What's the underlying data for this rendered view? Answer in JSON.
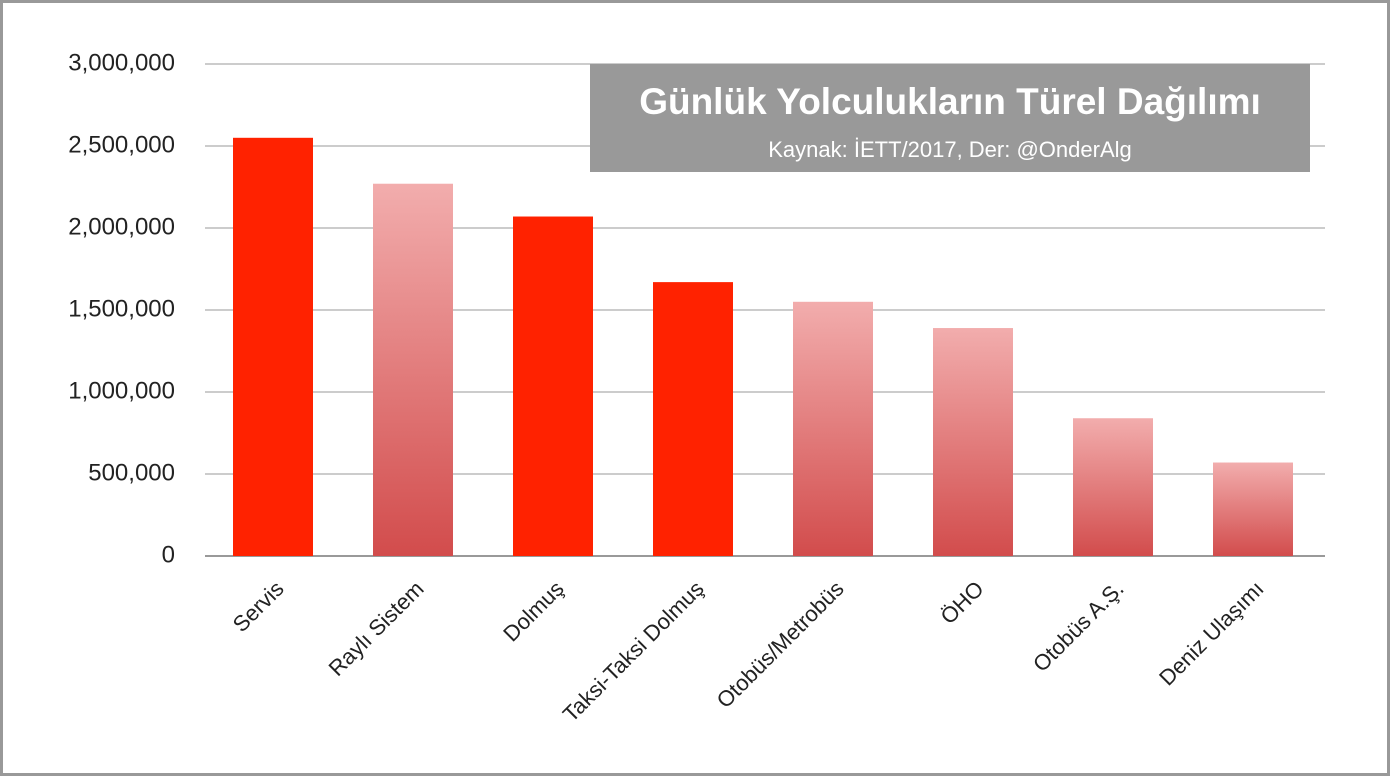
{
  "chart_data": {
    "type": "bar",
    "title": "Günlük Yolculukların Türel Dağılımı",
    "subtitle": "Kaynak: İETT/2017, Der: @OnderAlg",
    "categories": [
      "Servis",
      "Raylı Sistem",
      "Dolmuş",
      "Taksi-Taksi Dolmuş",
      "Otobüs/Metrobüs",
      "ÖHO",
      "Otobüs A.Ş.",
      "Deniz Ulaşımı"
    ],
    "values": [
      2550000,
      2270000,
      2070000,
      1670000,
      1550000,
      1390000,
      840000,
      570000
    ],
    "colors": [
      "#ff2200",
      "#e86a6a",
      "#ff2200",
      "#ff2200",
      "#e86a6a",
      "#e86a6a",
      "#e86a6a",
      "#e86a6a"
    ],
    "bar_style": [
      "solid",
      "gradient",
      "solid",
      "solid",
      "gradient",
      "gradient",
      "gradient",
      "gradient"
    ],
    "ylim": [
      0,
      3000000
    ],
    "yticks": [
      0,
      {
        "value": 500000,
        "label": "500,000"
      },
      {
        "value": 1000000,
        "label": "1,000,000"
      },
      {
        "value": 1500000,
        "label": "1,500,000"
      },
      {
        "value": 2000000,
        "label": "2,000,000"
      },
      {
        "value": 2500000,
        "label": "2,500,000"
      },
      {
        "value": 3000000,
        "label": "3,000,000"
      }
    ],
    "grid": true
  }
}
